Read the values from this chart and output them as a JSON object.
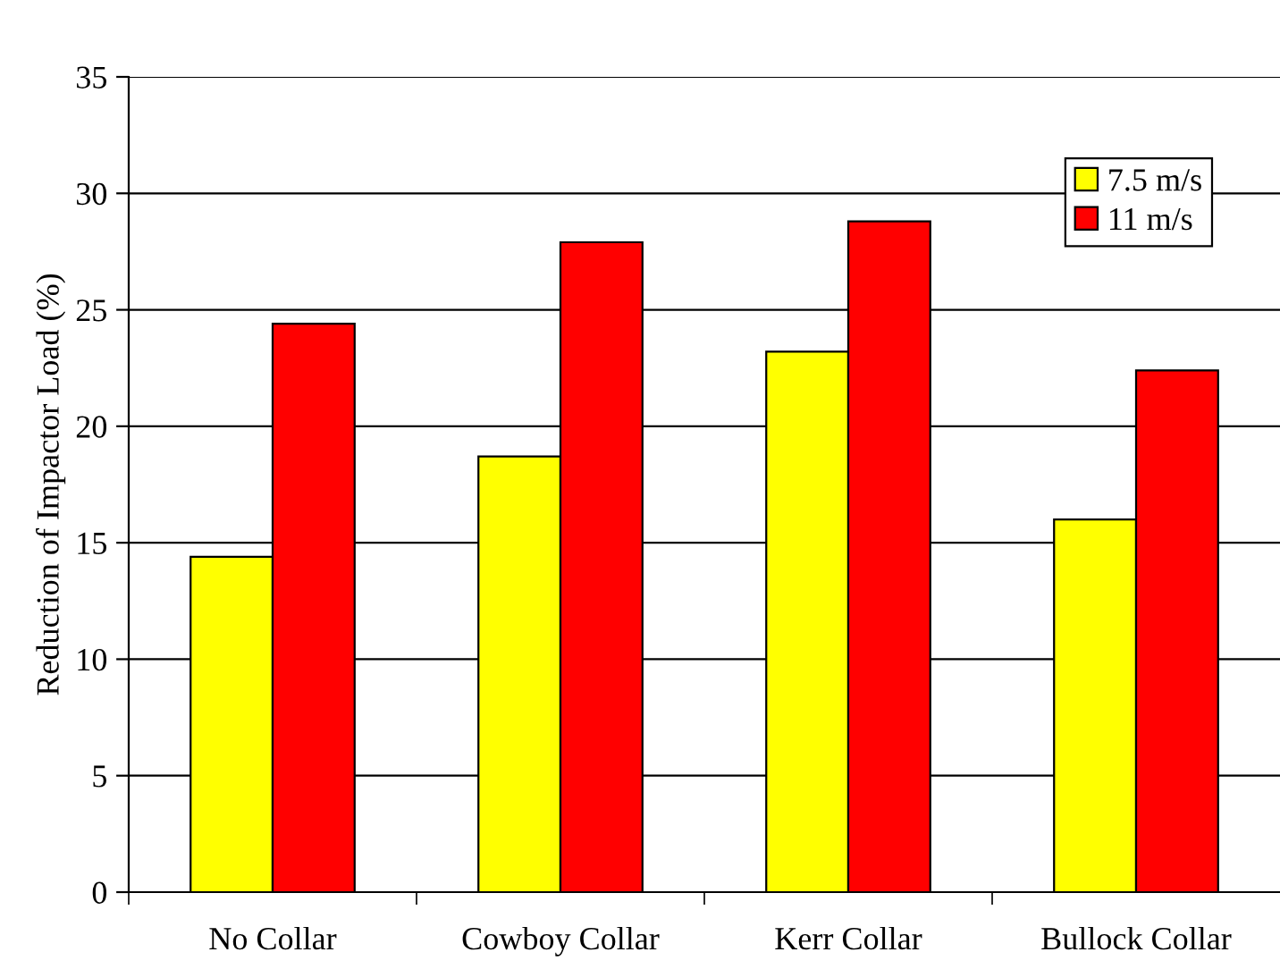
{
  "chart_data": {
    "type": "bar",
    "ylabel": "Reduction of Impactor Load (%)",
    "categories": [
      "No Collar",
      "Cowboy Collar",
      "Kerr Collar",
      "Bullock Collar"
    ],
    "series": [
      {
        "name": "7.5 m/s",
        "color": "#ffff00",
        "values": [
          14.4,
          18.7,
          23.2,
          16.0
        ]
      },
      {
        "name": "11 m/s",
        "color": "#ff0000",
        "values": [
          24.4,
          27.9,
          28.8,
          22.4
        ]
      }
    ],
    "ylim": [
      0,
      35
    ],
    "yticks": [
      0,
      5,
      10,
      15,
      20,
      25,
      30,
      35
    ],
    "grid": "y",
    "legend": "top right"
  }
}
